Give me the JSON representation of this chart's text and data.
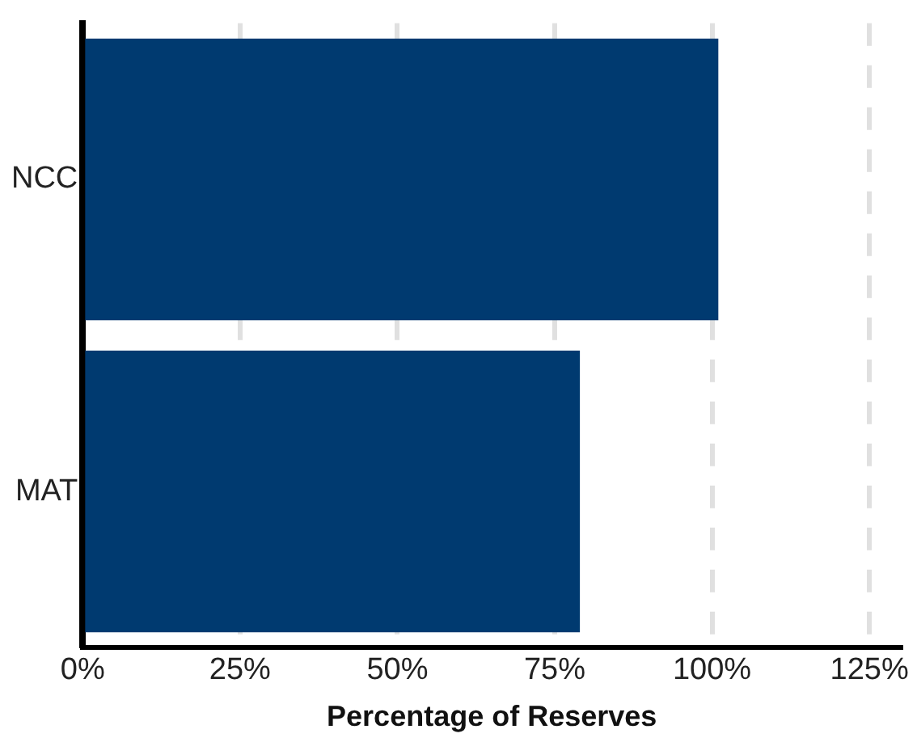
{
  "chart_data": {
    "type": "bar",
    "orientation": "horizontal",
    "xlabel": "Percentage of Reserves",
    "categories": [
      "NCC",
      "MAT"
    ],
    "values": [
      101,
      79
    ],
    "color": "#003a70",
    "xlim": [
      0,
      130
    ],
    "xticks": [
      {
        "value": 0,
        "label": "0%"
      },
      {
        "value": 25,
        "label": "25%"
      },
      {
        "value": 50,
        "label": "50%"
      },
      {
        "value": 75,
        "label": "75%"
      },
      {
        "value": 100,
        "label": "100%"
      },
      {
        "value": 125,
        "label": "125%"
      }
    ],
    "grid": "x",
    "legend": false
  }
}
